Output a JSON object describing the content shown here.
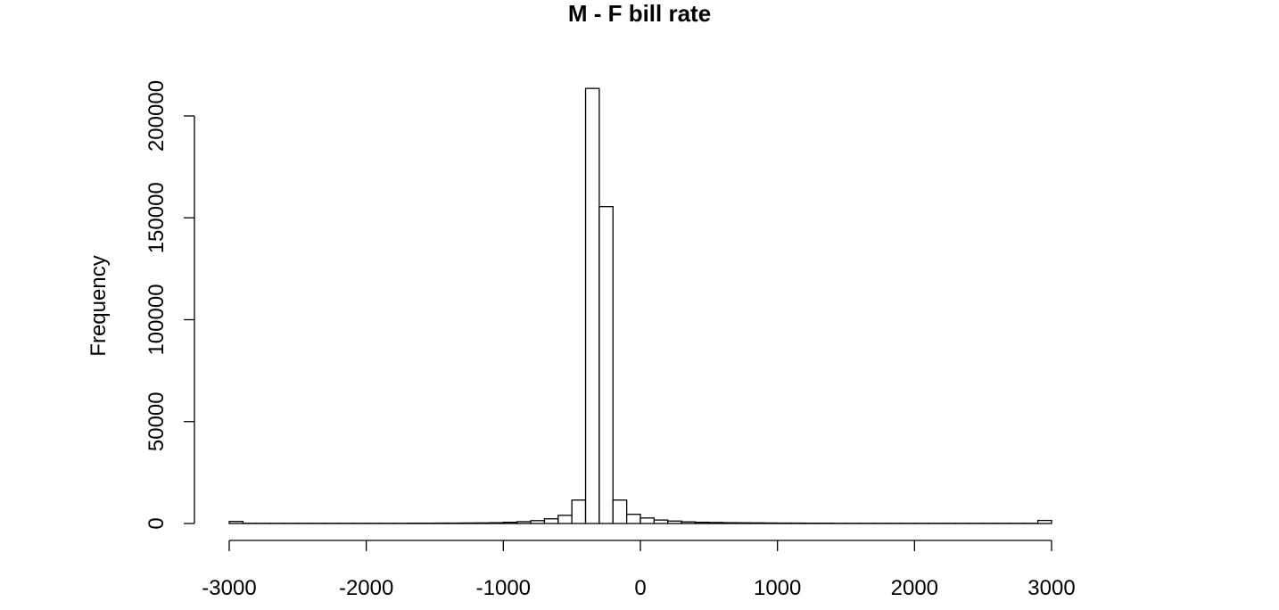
{
  "chart_data": {
    "type": "bar",
    "title": "M - F bill rate",
    "xlabel": "",
    "ylabel": "Frequency",
    "xlim": [
      -3000,
      3000
    ],
    "ylim": [
      0,
      200000
    ],
    "x_ticks": [
      -3000,
      -2000,
      -1000,
      0,
      1000,
      2000,
      3000
    ],
    "x_tick_labels": [
      "-3000",
      "-2000",
      "-1000",
      "0",
      "1000",
      "2000",
      "3000"
    ],
    "y_ticks": [
      0,
      50000,
      100000,
      150000,
      200000
    ],
    "y_tick_labels": [
      "0",
      "50000",
      "100000",
      "150000",
      "200000"
    ],
    "bin_width": 100,
    "bin_start": -3000,
    "values": [
      1000,
      100,
      100,
      100,
      100,
      100,
      100,
      100,
      100,
      100,
      100,
      100,
      100,
      150,
      150,
      200,
      200,
      250,
      300,
      400,
      600,
      900,
      1400,
      2300,
      4000,
      11500,
      213500,
      155500,
      11500,
      4500,
      2700,
      1700,
      1200,
      800,
      600,
      500,
      400,
      350,
      300,
      250,
      200,
      200,
      150,
      150,
      100,
      100,
      100,
      100,
      100,
      100,
      100,
      100,
      100,
      100,
      100,
      100,
      100,
      100,
      100,
      1500
    ],
    "grid": false,
    "legend": "none"
  }
}
